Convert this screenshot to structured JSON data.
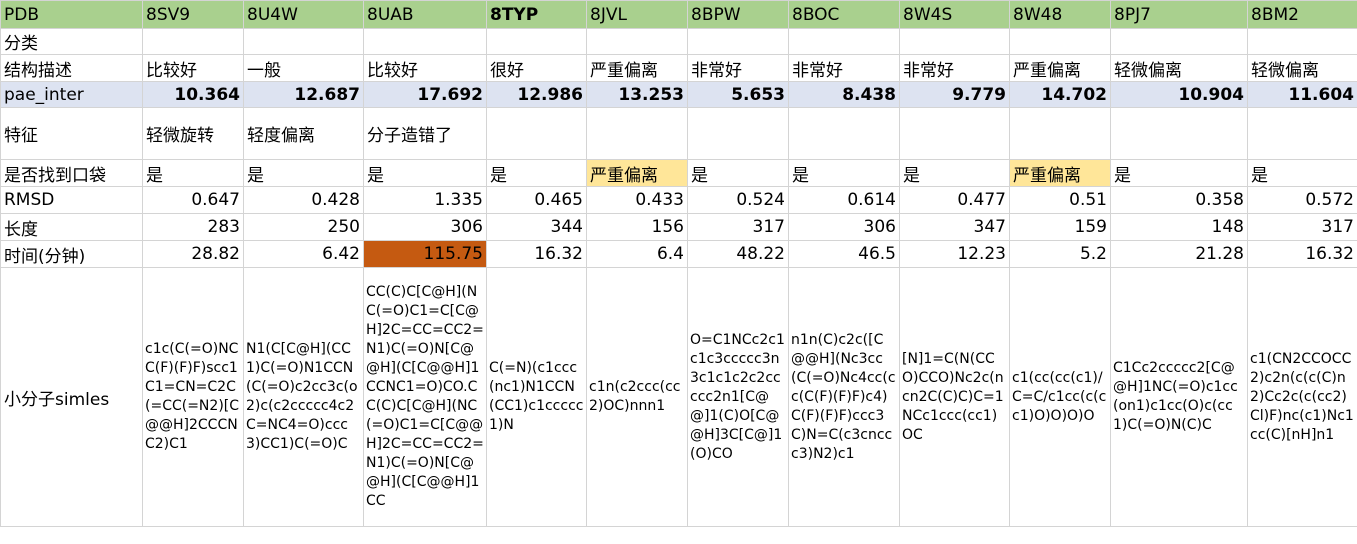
{
  "columns": [
    "PDB",
    "8SV9",
    "8U4W",
    "8UAB",
    "8TYP",
    "8JVL",
    "8BPW",
    "8BOC",
    "8W4S",
    "8W48",
    "8PJ7",
    "8BM2"
  ],
  "rows": {
    "category": {
      "label": "分类",
      "values": [
        "",
        "",
        "",
        "",
        "",
        "",
        "",
        "",
        "",
        "",
        ""
      ]
    },
    "structure": {
      "label": "结构描述",
      "values": [
        "比较好",
        "一般",
        "比较好",
        "很好",
        "严重偏离",
        "非常好",
        "非常好",
        "非常好",
        "严重偏离",
        "轻微偏离",
        "轻微偏离"
      ]
    },
    "pae": {
      "label": "pae_inter",
      "values": [
        "10.364",
        "12.687",
        "17.692",
        "12.986",
        "13.253",
        "5.653",
        "8.438",
        "9.779",
        "14.702",
        "10.904",
        "11.604"
      ]
    },
    "feature": {
      "label": "特征",
      "values": [
        "轻微旋转",
        "轻度偏离",
        "分子造错了",
        "",
        "",
        "",
        "",
        "",
        "",
        "",
        ""
      ]
    },
    "pocket": {
      "label": "是否找到口袋",
      "values": [
        "是",
        "是",
        "是",
        "是",
        "严重偏离",
        "是",
        "是",
        "是",
        "严重偏离",
        "是",
        "是"
      ]
    },
    "rmsd": {
      "label": "RMSD",
      "values": [
        "0.647",
        "0.428",
        "1.335",
        "0.465",
        "0.433",
        "0.524",
        "0.614",
        "0.477",
        "0.51",
        "0.358",
        "0.572"
      ]
    },
    "length": {
      "label": "长度",
      "values": [
        "283",
        "250",
        "306",
        "344",
        "156",
        "317",
        "306",
        "347",
        "159",
        "148",
        "317"
      ]
    },
    "time": {
      "label": "时间(分钟)",
      "values": [
        "28.82",
        "6.42",
        "115.75",
        "16.32",
        "6.4",
        "48.22",
        "46.5",
        "12.23",
        "5.2",
        "21.28",
        "16.32"
      ]
    },
    "smiles": {
      "label": "小分子simles",
      "values": [
        "c1c(C(=O)NCC(F)(F)F)scc1C1=CN=C2C(=CC(=N2)[C@@H]2CCCNC2)C1",
        "N1(C[C@H](CC1)C(=O)N1CCN(C(=O)c2cc3c(o2)c(c2ccccc4c2C=NC4=O)ccc3)CC1)C(=O)C",
        "CC(C)C[C@H](NC(=O)C1=C[C@H]2C=CC=CC2=N1)C(=O)N[C@@H](C[C@@H]1CCNC1=O)CO.CC(C)C[C@H](NC(=O)C1=C[C@@H]2C=CC=CC2=N1)C(=O)N[C@@H](C[C@@H]1CC",
        "C(=N)(c1ccc(nc1)N1CCN(CC1)c1ccccc1)N",
        "c1n(c2ccc(cc2)OC)nnn1",
        "O=C1NCc2c1c1c3ccccc3n3c1c1c2c2ccccc2n1[C@@]1(C)O[C@@H]3C[C@]1(O)CO",
        "n1n(C)c2c([C@@H](Nc3cc(C(=O)Nc4cc(cc(C(F)(F)F)c4)C(F)(F)F)ccc3C)N=C(c3cnccc3)N2)c1",
        "[N]1=C(N(CCO)CCO)Nc2c(ncn2C(C)C)C=1NCc1ccc(cc1)OC",
        "c1(cc(cc(c1)/C=C/c1cc(c(cc1)O)O)O)O",
        "C1Cc2ccccc2[C@@H]1NC(=O)c1cc(on1)c1cc(O)c(cc1)C(=O)N(C)C",
        "c1(CN2CCOCC2)c2n(c(c(C)n2)Cc2c(c(cc2)Cl)F)nc(c1)Nc1cc(C)[nH]n1"
      ]
    }
  },
  "colors": {
    "header_green": "#a9d08e",
    "pae_blue": "#dde3f1",
    "highlight_yellow": "#ffe699",
    "highlight_orange": "#c55a11"
  }
}
